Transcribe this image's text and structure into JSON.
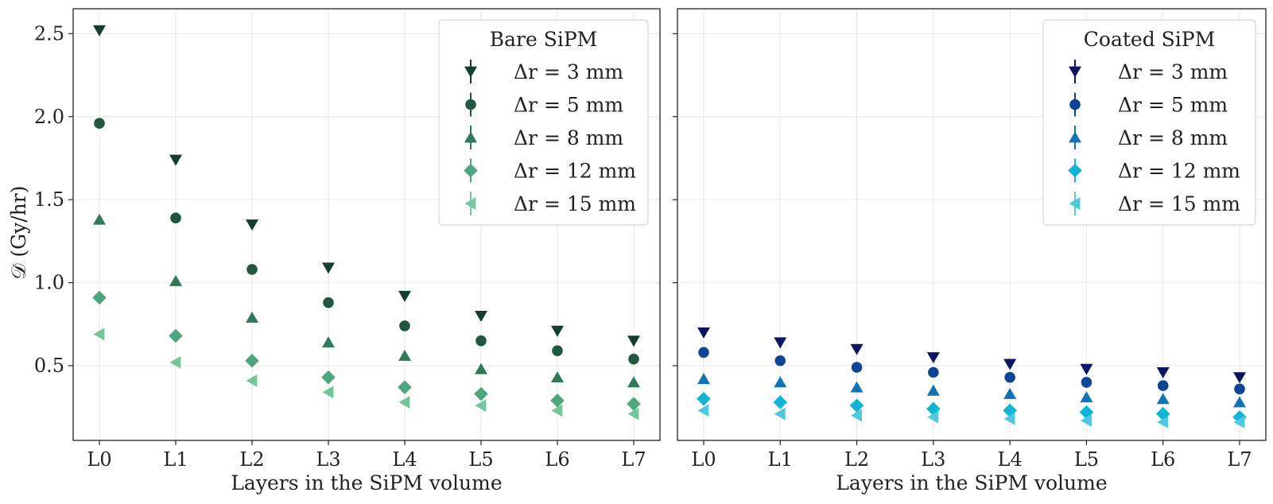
{
  "chart_data": [
    {
      "type": "scatter",
      "panel": "left",
      "xlabel": "Layers in the SiPM volume",
      "ylabel": "𝒟 (Gy/hr)",
      "categories": [
        "L0",
        "L1",
        "L2",
        "L3",
        "L4",
        "L5",
        "L6",
        "L7"
      ],
      "ylim": [
        0.05,
        2.65
      ],
      "yticks": [
        0.5,
        1.0,
        1.5,
        2.0,
        2.5
      ],
      "ytick_labels": [
        "0.5",
        "1.0",
        "1.5",
        "2.0",
        "2.5"
      ],
      "grid": true,
      "legend": {
        "title": "Bare SiPM",
        "placement": "top-right"
      },
      "series": [
        {
          "name": "Δr = 3 mm",
          "marker": "triangle-down",
          "color": "#143d2c",
          "values": [
            2.52,
            1.74,
            1.35,
            1.09,
            0.92,
            0.8,
            0.71,
            0.65
          ]
        },
        {
          "name": "Δr = 5 mm",
          "marker": "circle",
          "color": "#1f573f",
          "values": [
            1.96,
            1.39,
            1.08,
            0.88,
            0.74,
            0.65,
            0.59,
            0.54
          ]
        },
        {
          "name": "Δr = 8 mm",
          "marker": "triangle-up",
          "color": "#2f7a58",
          "values": [
            1.38,
            1.01,
            0.79,
            0.64,
            0.56,
            0.48,
            0.43,
            0.4
          ]
        },
        {
          "name": "Δr = 12 mm",
          "marker": "diamond",
          "color": "#4ea67c",
          "values": [
            0.91,
            0.68,
            0.53,
            0.43,
            0.37,
            0.33,
            0.29,
            0.27
          ]
        },
        {
          "name": "Δr = 15 mm",
          "marker": "triangle-left",
          "color": "#76c69c",
          "values": [
            0.69,
            0.52,
            0.41,
            0.34,
            0.28,
            0.26,
            0.23,
            0.21
          ]
        }
      ]
    },
    {
      "type": "scatter",
      "panel": "right",
      "xlabel": "Layers in the SiPM volume",
      "ylabel": "",
      "categories": [
        "L0",
        "L1",
        "L2",
        "L3",
        "L4",
        "L5",
        "L6",
        "L7"
      ],
      "ylim": [
        0.05,
        2.65
      ],
      "yticks": [
        0.5,
        1.0,
        1.5,
        2.0,
        2.5
      ],
      "ytick_labels": [
        "",
        "",
        "",
        "",
        ""
      ],
      "grid": true,
      "legend": {
        "title": "Coated SiPM",
        "placement": "top-right"
      },
      "series": [
        {
          "name": "Δr = 3 mm",
          "marker": "triangle-down",
          "color": "#0b1663",
          "values": [
            0.7,
            0.64,
            0.6,
            0.55,
            0.51,
            0.48,
            0.46,
            0.43
          ]
        },
        {
          "name": "Δr = 5 mm",
          "marker": "circle",
          "color": "#0e4596",
          "values": [
            0.58,
            0.53,
            0.49,
            0.46,
            0.43,
            0.4,
            0.38,
            0.36
          ]
        },
        {
          "name": "Δr = 8 mm",
          "marker": "triangle-up",
          "color": "#1173b6",
          "values": [
            0.42,
            0.4,
            0.37,
            0.35,
            0.33,
            0.31,
            0.3,
            0.28
          ]
        },
        {
          "name": "Δr = 12 mm",
          "marker": "diamond",
          "color": "#12b4d4",
          "values": [
            0.3,
            0.28,
            0.26,
            0.24,
            0.23,
            0.22,
            0.21,
            0.19
          ]
        },
        {
          "name": "Δr = 15 mm",
          "marker": "triangle-left",
          "color": "#4fc9e0",
          "values": [
            0.23,
            0.21,
            0.2,
            0.19,
            0.18,
            0.17,
            0.16,
            0.16
          ]
        }
      ]
    }
  ]
}
